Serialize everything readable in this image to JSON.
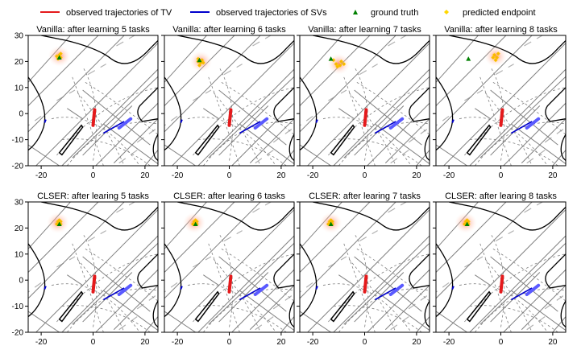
{
  "legend": {
    "tv_label": "observed trajectories of TV",
    "sv_label": "observed trajectories of SVs",
    "gt_label": "ground truth",
    "pred_label": "predicted endpoint"
  },
  "colors": {
    "tv": "#e41a1c",
    "sv": "#0000cc",
    "ground_truth": "#008000",
    "predicted": "#ffd700",
    "map_dark": "#000000",
    "map_gray": "#808080",
    "map_light": "#b0b0b0"
  },
  "chart_data": [
    {
      "type": "scatter",
      "title": "Vanilla: after learning 5 tasks",
      "xlim": [
        -25,
        25
      ],
      "ylim": [
        -20,
        30
      ],
      "xticks": [
        -20,
        0,
        20
      ],
      "yticks": [
        -20,
        -10,
        0,
        10,
        20,
        30
      ],
      "ground_truth": [
        -13,
        21.5
      ],
      "heatmap_center": [
        -13,
        22
      ],
      "predicted_endpoints": [
        [
          -13,
          22.5
        ],
        [
          -12.5,
          21.5
        ],
        [
          -14,
          22
        ],
        [
          -13.5,
          21
        ],
        [
          -12.5,
          23
        ]
      ]
    },
    {
      "type": "scatter",
      "title": "Vanilla: after learning 6 tasks",
      "xlim": [
        -25,
        25
      ],
      "ylim": [
        -20,
        30
      ],
      "xticks": [
        -20,
        0,
        20
      ],
      "yticks": [
        -20,
        -10,
        0,
        10,
        20,
        30
      ],
      "ground_truth": [
        -11.5,
        20.5
      ],
      "heatmap_center": [
        -11,
        20
      ],
      "predicted_endpoints": [
        [
          -12,
          21
        ],
        [
          -11,
          19.5
        ],
        [
          -10.5,
          20.5
        ],
        [
          -12,
          20
        ],
        [
          -11.5,
          18.5
        ],
        [
          -10,
          19.5
        ]
      ]
    },
    {
      "type": "scatter",
      "title": "Vanilla: after learning 7 tasks",
      "xlim": [
        -25,
        25
      ],
      "ylim": [
        -20,
        30
      ],
      "xticks": [
        -20,
        0,
        20
      ],
      "yticks": [
        -20,
        -10,
        0,
        10,
        20,
        30
      ],
      "ground_truth": [
        -13,
        21
      ],
      "heatmap_center": [
        -10,
        19
      ],
      "predicted_endpoints": [
        [
          -11,
          19
        ],
        [
          -9.5,
          18.5
        ],
        [
          -12,
          20.5
        ],
        [
          -8,
          19
        ],
        [
          -10.5,
          18
        ],
        [
          -9,
          20
        ]
      ]
    },
    {
      "type": "scatter",
      "title": "Vanilla: after learning 8 tasks",
      "xlim": [
        -25,
        25
      ],
      "ylim": [
        -20,
        30
      ],
      "xticks": [
        -20,
        0,
        20
      ],
      "yticks": [
        -20,
        -10,
        0,
        10,
        20,
        30
      ],
      "ground_truth": [
        -12.5,
        21
      ],
      "heatmap_center": [
        -2,
        22
      ],
      "predicted_endpoints": [
        [
          -2.5,
          22.5
        ],
        [
          -1.5,
          21.5
        ],
        [
          -2,
          20.5
        ],
        [
          -3,
          21.5
        ],
        [
          -1,
          23
        ]
      ]
    },
    {
      "type": "scatter",
      "title": "CLSER: after learing 5 tasks",
      "xlim": [
        -25,
        25
      ],
      "ylim": [
        -20,
        30
      ],
      "xticks": [
        -20,
        0,
        20
      ],
      "yticks": [
        -20,
        -10,
        0,
        10,
        20,
        30
      ],
      "ground_truth": [
        -13,
        21.5
      ],
      "heatmap_center": [
        -13.5,
        22
      ],
      "predicted_endpoints": [
        [
          -13.5,
          22.5
        ],
        [
          -12.5,
          21.5
        ],
        [
          -14,
          21.5
        ],
        [
          -13,
          23
        ],
        [
          -12.5,
          22.5
        ]
      ]
    },
    {
      "type": "scatter",
      "title": "CLSER: after learing 6 tasks",
      "xlim": [
        -25,
        25
      ],
      "ylim": [
        -20,
        30
      ],
      "xticks": [
        -20,
        0,
        20
      ],
      "yticks": [
        -20,
        -10,
        0,
        10,
        20,
        30
      ],
      "ground_truth": [
        -13,
        21.5
      ],
      "heatmap_center": [
        -13.5,
        22
      ],
      "predicted_endpoints": [
        [
          -13.5,
          22.5
        ],
        [
          -12.5,
          21.5
        ],
        [
          -14,
          21.5
        ],
        [
          -13,
          23
        ],
        [
          -12.5,
          22.5
        ]
      ]
    },
    {
      "type": "scatter",
      "title": "CLSER: after learing 7 tasks",
      "xlim": [
        -25,
        25
      ],
      "ylim": [
        -20,
        30
      ],
      "xticks": [
        -20,
        0,
        20
      ],
      "yticks": [
        -20,
        -10,
        0,
        10,
        20,
        30
      ],
      "ground_truth": [
        -13,
        21.5
      ],
      "heatmap_center": [
        -13,
        22
      ],
      "predicted_endpoints": [
        [
          -13.5,
          22.5
        ],
        [
          -12.5,
          21.5
        ],
        [
          -14,
          21.5
        ],
        [
          -13,
          23
        ],
        [
          -12.5,
          22.5
        ]
      ]
    },
    {
      "type": "scatter",
      "title": "CLSER: after learing 8 tasks",
      "xlim": [
        -25,
        25
      ],
      "ylim": [
        -20,
        30
      ],
      "xticks": [
        -20,
        0,
        20
      ],
      "yticks": [
        -20,
        -10,
        0,
        10,
        20,
        30
      ],
      "ground_truth": [
        -13,
        21.5
      ],
      "heatmap_center": [
        -13.5,
        22
      ],
      "predicted_endpoints": [
        [
          -13.5,
          22.5
        ],
        [
          -12.5,
          21.5
        ],
        [
          -14,
          21.5
        ],
        [
          -13,
          23
        ],
        [
          -12.5,
          22.5
        ]
      ]
    }
  ]
}
